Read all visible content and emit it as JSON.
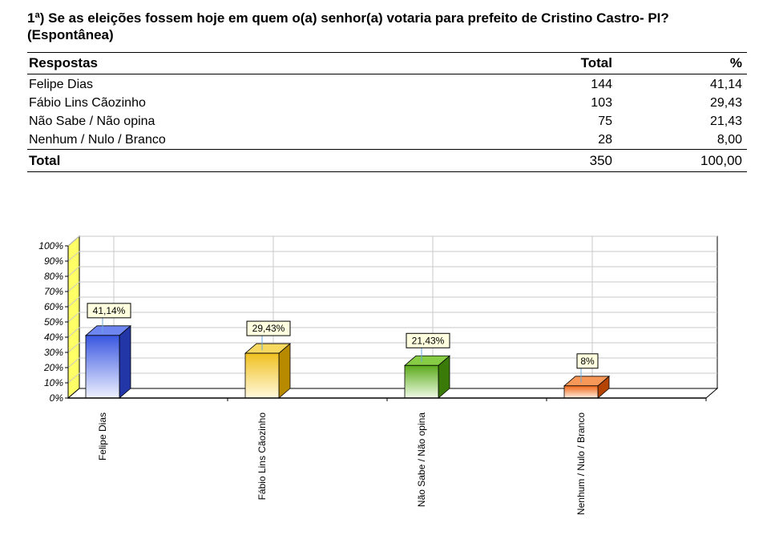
{
  "title": {
    "line1": "1ª) Se as eleições fossem hoje em quem o(a) senhor(a) votaria para prefeito de Cristino Castro- PI?",
    "line2": "(Espontânea)"
  },
  "table": {
    "headers": {
      "respostas": "Respostas",
      "total": "Total",
      "pct": "%"
    },
    "rows": [
      {
        "label": "Felipe Dias",
        "total": "144",
        "pct": "41,14"
      },
      {
        "label": "Fábio Lins Cãozinho",
        "total": "103",
        "pct": "29,43"
      },
      {
        "label": "Não Sabe / Não opina",
        "total": "75",
        "pct": "21,43"
      },
      {
        "label": "Nenhum / Nulo / Branco",
        "total": "28",
        "pct": "8,00"
      }
    ],
    "footer": {
      "label": "Total",
      "total": "350",
      "pct": "100,00"
    }
  },
  "chart_data": {
    "type": "bar",
    "categories": [
      "Felipe Dias",
      "Fábio Lins Cãozinho",
      "Não Sabe / Não opina",
      "Nenhum / Nulo / Branco"
    ],
    "values": [
      41.14,
      29.43,
      21.43,
      8
    ],
    "data_labels": [
      "41,14%",
      "29,43%",
      "21,43%",
      "8%"
    ],
    "y_ticks": [
      "0%",
      "10%",
      "20%",
      "30%",
      "40%",
      "50%",
      "60%",
      "70%",
      "80%",
      "90%",
      "100%"
    ],
    "ylim": [
      0,
      100
    ],
    "grid": true,
    "three_d": true,
    "colors": [
      {
        "front": "#3a57e0",
        "light": "#eef1ff",
        "side": "#2236a8",
        "top": "#6d86f0"
      },
      {
        "front": "#f0c020",
        "light": "#fff8dc",
        "side": "#b88a00",
        "top": "#f7d860"
      },
      {
        "front": "#5aaa1a",
        "light": "#f0fbe6",
        "side": "#3a7a08",
        "top": "#86cc44"
      },
      {
        "front": "#f06818",
        "light": "#ffeee2",
        "side": "#b44400",
        "top": "#f89858"
      }
    ],
    "wall_color": "#ffff66",
    "label_box_color": "#ffffe0"
  }
}
